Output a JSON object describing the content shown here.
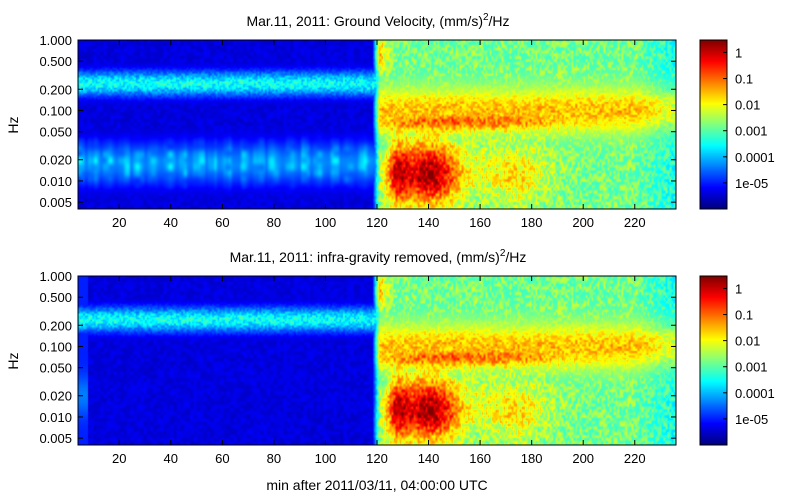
{
  "chart_data": [
    {
      "type": "heatmap",
      "title": "Mar.11, 2011: Ground Velocity, (mm/s)",
      "title_sup": "2",
      "title_suffix": "/Hz",
      "ylabel": "Hz",
      "xlabel": "",
      "y_scale": "log",
      "xlim": [
        4,
        236
      ],
      "ylim": [
        0.004,
        1.0
      ],
      "xticks": [
        20,
        40,
        60,
        80,
        100,
        120,
        140,
        160,
        180,
        200,
        220
      ],
      "yticks": [
        0.005,
        0.01,
        0.02,
        0.05,
        0.1,
        0.2,
        0.5,
        1.0
      ],
      "ytick_labels": [
        "0.005",
        "0.010",
        "0.020",
        "0.050",
        "0.100",
        "0.200",
        "0.500",
        "1.000"
      ],
      "colorbar": {
        "scale": "log",
        "range": [
          1e-06,
          3
        ],
        "ticks": [
          1e-05,
          0.0001,
          0.001,
          0.01,
          0.1,
          1
        ],
        "tick_labels": [
          "1e-05",
          "0.0001",
          "0.001",
          "0.01",
          "0.1",
          "1"
        ]
      },
      "colormap": "jet",
      "features": {
        "event_onset_min": 118,
        "infragravity_band_hz": [
          0.006,
          0.04
        ],
        "infragravity_present": true
      }
    },
    {
      "type": "heatmap",
      "title": "Mar.11, 2011: infra-gravity removed, (mm/s)",
      "title_sup": "2",
      "title_suffix": "/Hz",
      "ylabel": "Hz",
      "xlabel": "min after 2011/03/11, 04:00:00 UTC",
      "y_scale": "log",
      "xlim": [
        4,
        236
      ],
      "ylim": [
        0.004,
        1.0
      ],
      "xticks": [
        20,
        40,
        60,
        80,
        100,
        120,
        140,
        160,
        180,
        200,
        220
      ],
      "yticks": [
        0.005,
        0.01,
        0.02,
        0.05,
        0.1,
        0.2,
        0.5,
        1.0
      ],
      "ytick_labels": [
        "0.005",
        "0.010",
        "0.020",
        "0.050",
        "0.100",
        "0.200",
        "0.500",
        "1.000"
      ],
      "colorbar": {
        "scale": "log",
        "range": [
          1e-06,
          3
        ],
        "ticks": [
          1e-05,
          0.0001,
          0.001,
          0.01,
          0.1,
          1
        ],
        "tick_labels": [
          "1e-05",
          "0.0001",
          "0.001",
          "0.01",
          "0.1",
          "1"
        ]
      },
      "colormap": "jet",
      "features": {
        "event_onset_min": 118,
        "infragravity_band_hz": [
          0.006,
          0.04
        ],
        "infragravity_present": false
      }
    }
  ]
}
